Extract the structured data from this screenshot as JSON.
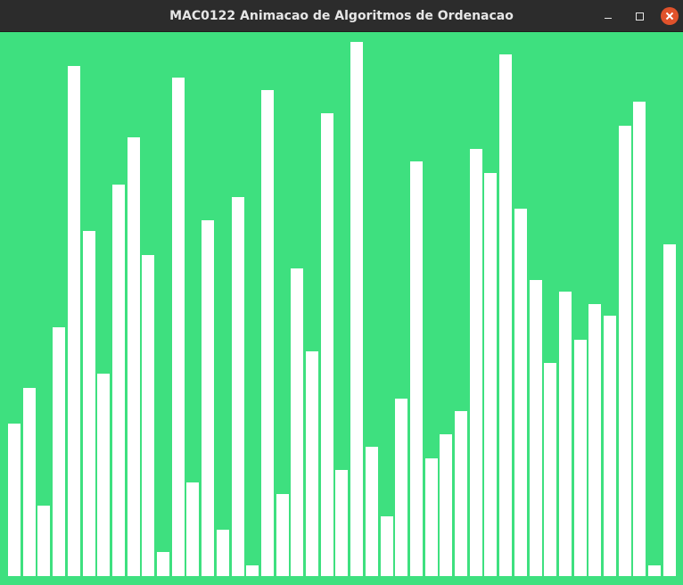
{
  "window": {
    "title": "MAC0122 Animacao de Algoritmos de Ordenacao"
  },
  "controls": {
    "minimize_icon": "minimize-icon",
    "maximize_icon": "maximize-icon",
    "close_icon": "close-icon"
  },
  "colors": {
    "background": "#3ee07f",
    "bar": "#ffffff",
    "titlebar": "#2c2c2c",
    "close": "#e0522b"
  },
  "chart_data": {
    "type": "bar",
    "values": [
      128,
      158,
      59,
      209,
      429,
      290,
      170,
      329,
      369,
      270,
      20,
      419,
      79,
      299,
      39,
      319,
      9,
      409,
      69,
      259,
      189,
      389,
      89,
      449,
      109,
      50,
      149,
      349,
      99,
      119,
      139,
      359,
      339,
      439,
      309,
      249,
      179,
      239,
      199,
      229,
      219,
      379,
      399,
      9,
      279
    ],
    "ylim": [
      0,
      450
    ]
  }
}
